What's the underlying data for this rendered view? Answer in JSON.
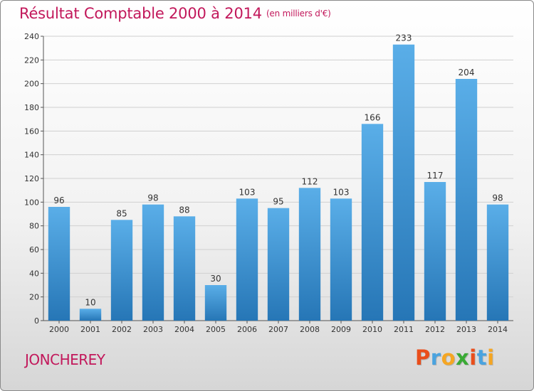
{
  "chart_data": {
    "type": "bar",
    "title": "Résultat Comptable 2000 à 2014",
    "subtitle": "(en milliers d'€)",
    "categories": [
      "2000",
      "2001",
      "2002",
      "2003",
      "2004",
      "2005",
      "2006",
      "2007",
      "2008",
      "2009",
      "2010",
      "2011",
      "2012",
      "2013",
      "2014"
    ],
    "values": [
      96,
      10,
      85,
      98,
      88,
      30,
      103,
      95,
      112,
      103,
      166,
      233,
      117,
      204,
      98
    ],
    "yticks": [
      0,
      20,
      40,
      60,
      80,
      100,
      120,
      140,
      160,
      180,
      200,
      220,
      240
    ],
    "ylim": [
      0,
      240
    ],
    "grid": true,
    "bar_color_top": "#5aaee8",
    "bar_color_bottom": "#2676b6"
  },
  "place_name": "JONCHEREY",
  "brand": {
    "letters": [
      "P",
      "r",
      "o",
      "x",
      "i",
      "t",
      "i"
    ],
    "colors": [
      "#e94e1b",
      "#4aa3df",
      "#f5a623",
      "#3aaa35",
      "#e94e1b",
      "#4aa3df",
      "#f5a623"
    ]
  },
  "colors": {
    "accent": "#c2185b",
    "grid": "#d0d0d0",
    "axis": "#555555",
    "text": "#333333"
  }
}
